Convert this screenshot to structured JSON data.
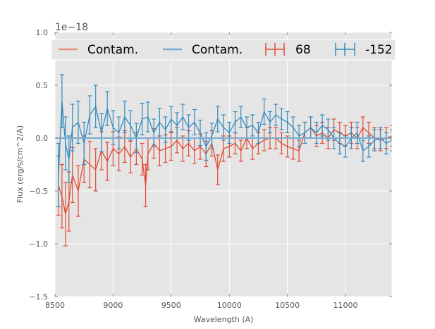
{
  "chart_data": {
    "type": "line",
    "title": "",
    "xlabel": "Wavelength (A)",
    "ylabel": "Flux (erg/s/cm^2/A)",
    "y_offset_label": "1e−18",
    "xlim": [
      8500,
      11400
    ],
    "ylim": [
      -1.5,
      1.0
    ],
    "xticks": [
      8500,
      9000,
      9500,
      10000,
      10500,
      11000
    ],
    "xtick_labels": [
      "8500",
      "9000",
      "9500",
      "10000",
      "10500",
      "11000"
    ],
    "yticks": [
      -1.5,
      -1.0,
      -0.5,
      0.0,
      0.5,
      1.0
    ],
    "ytick_labels": [
      "−1.5",
      "−1.0",
      "−0.5",
      "0.0",
      "0.5",
      "1.0"
    ],
    "grid": true,
    "legend_position": "top",
    "legend": [
      "Contam.",
      "Contam.",
      "68",
      "-152"
    ],
    "colors": {
      "red": "#E24A33",
      "blue": "#348ABD",
      "red_light": "#E8907C",
      "blue_light": "#79ACD0",
      "background": "#E5E5E5",
      "grid": "#FFFFFF"
    },
    "series": [
      {
        "name": "68",
        "color": "#E24A33",
        "x": [
          8530,
          8560,
          8590,
          8620,
          8650,
          8700,
          8750,
          8800,
          8850,
          8900,
          8950,
          9000,
          9050,
          9100,
          9150,
          9200,
          9250,
          9280,
          9300,
          9350,
          9400,
          9450,
          9500,
          9550,
          9600,
          9650,
          9700,
          9750,
          9800,
          9850,
          9900,
          9950,
          10000,
          10050,
          10100,
          10150,
          10200,
          10250,
          10300,
          10350,
          10400,
          10450,
          10500,
          10550,
          10600,
          10650,
          10700,
          10750,
          10800,
          10850,
          10900,
          10950,
          11000,
          11050,
          11100,
          11150,
          11200,
          11250,
          11300,
          11350,
          11400
        ],
        "y": [
          -0.45,
          -0.55,
          -0.72,
          -0.6,
          -0.35,
          -0.5,
          -0.2,
          -0.25,
          -0.3,
          -0.12,
          -0.22,
          -0.1,
          -0.15,
          -0.08,
          -0.18,
          -0.1,
          -0.2,
          -0.45,
          -0.15,
          -0.05,
          -0.12,
          -0.1,
          -0.08,
          -0.02,
          -0.1,
          -0.05,
          -0.12,
          -0.08,
          -0.15,
          -0.05,
          -0.3,
          -0.1,
          -0.08,
          -0.05,
          -0.12,
          0.0,
          -0.1,
          -0.05,
          -0.02,
          0.0,
          0.0,
          -0.05,
          -0.08,
          -0.1,
          -0.12,
          0.05,
          0.1,
          0.02,
          0.05,
          0.0,
          0.08,
          0.05,
          0.02,
          0.05,
          0.0,
          0.1,
          0.05,
          0.0,
          -0.02,
          0.0,
          0.02
        ],
        "yerr": [
          0.28,
          0.3,
          0.3,
          0.28,
          0.26,
          0.24,
          0.22,
          0.22,
          0.2,
          0.18,
          0.18,
          0.16,
          0.16,
          0.15,
          0.15,
          0.15,
          0.15,
          0.2,
          0.15,
          0.14,
          0.14,
          0.13,
          0.13,
          0.12,
          0.12,
          0.12,
          0.12,
          0.12,
          0.12,
          0.12,
          0.14,
          0.12,
          0.1,
          0.1,
          0.1,
          0.1,
          0.1,
          0.1,
          0.1,
          0.1,
          0.1,
          0.1,
          0.1,
          0.1,
          0.1,
          0.1,
          0.1,
          0.1,
          0.1,
          0.1,
          0.1,
          0.1,
          0.1,
          0.1,
          0.1,
          0.1,
          0.1,
          0.1,
          0.1,
          0.1,
          0.1
        ]
      },
      {
        "name": "-152",
        "color": "#348ABD",
        "x": [
          8530,
          8560,
          8590,
          8620,
          8650,
          8700,
          8750,
          8800,
          8850,
          8900,
          8950,
          9000,
          9050,
          9100,
          9150,
          9200,
          9250,
          9300,
          9350,
          9400,
          9450,
          9500,
          9550,
          9600,
          9650,
          9700,
          9750,
          9800,
          9850,
          9900,
          9950,
          10000,
          10050,
          10100,
          10150,
          10200,
          10250,
          10300,
          10350,
          10400,
          10450,
          10500,
          10550,
          10600,
          10650,
          10700,
          10750,
          10800,
          10850,
          10900,
          10950,
          11000,
          11050,
          11100,
          11150,
          11200,
          11250,
          11300,
          11350,
          11400
        ],
        "y": [
          -0.35,
          0.35,
          -0.05,
          -0.2,
          0.1,
          0.15,
          -0.05,
          0.22,
          0.3,
          0.05,
          0.28,
          0.1,
          0.05,
          0.2,
          0.12,
          0.0,
          0.18,
          0.2,
          0.05,
          0.15,
          0.08,
          0.18,
          0.12,
          0.2,
          0.1,
          0.15,
          0.05,
          -0.08,
          0.02,
          0.18,
          0.1,
          0.05,
          0.15,
          0.2,
          0.1,
          0.12,
          0.05,
          0.25,
          0.15,
          0.22,
          0.18,
          0.15,
          0.1,
          0.02,
          0.05,
          0.1,
          0.05,
          0.12,
          0.08,
          0.0,
          -0.05,
          -0.08,
          0.0,
          0.05,
          -0.12,
          -0.08,
          -0.02,
          0.0,
          -0.05,
          -0.02
        ],
        "yerr": [
          0.3,
          0.25,
          0.25,
          0.22,
          0.22,
          0.2,
          0.2,
          0.18,
          0.2,
          0.18,
          0.16,
          0.16,
          0.15,
          0.15,
          0.14,
          0.14,
          0.15,
          0.14,
          0.13,
          0.13,
          0.12,
          0.12,
          0.12,
          0.12,
          0.12,
          0.12,
          0.12,
          0.13,
          0.12,
          0.12,
          0.12,
          0.1,
          0.1,
          0.1,
          0.1,
          0.1,
          0.1,
          0.12,
          0.1,
          0.1,
          0.1,
          0.1,
          0.1,
          0.1,
          0.1,
          0.1,
          0.1,
          0.1,
          0.1,
          0.1,
          0.1,
          0.1,
          0.1,
          0.1,
          0.1,
          0.1,
          0.1,
          0.1,
          0.1,
          0.1
        ]
      },
      {
        "name": "Contam.",
        "color": "#E8907C",
        "x": [
          8500,
          11400
        ],
        "y": [
          0.0,
          0.0
        ]
      },
      {
        "name": "Contam.",
        "color": "#79ACD0",
        "x": [
          8500,
          11400
        ],
        "y": [
          0.0,
          0.0
        ]
      }
    ]
  }
}
